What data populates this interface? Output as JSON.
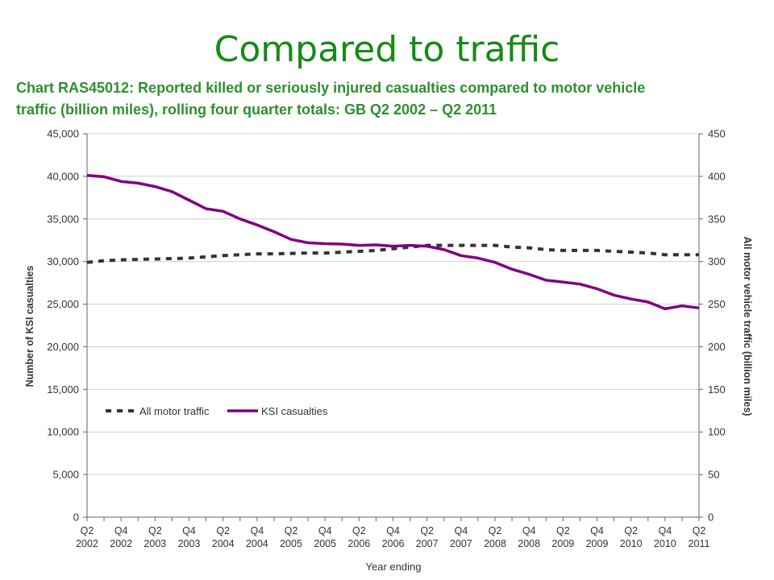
{
  "slide": {
    "title": "Compared to traffic"
  },
  "chart_data": {
    "type": "line",
    "title_lines": [
      "Chart RAS45012: Reported killed or seriously injured casualties compared to motor vehicle",
      "traffic (billion miles), rolling four quarter totals: GB Q2 2002 – Q2 2011"
    ],
    "xlabel": "Year ending",
    "ylabel_left": "Number of KSI casualties",
    "ylabel_right": "All motor vehicle traffic (billion miles)",
    "ylim_left": [
      0,
      45000
    ],
    "ylim_right": [
      0,
      450
    ],
    "yticks_left": [
      "0",
      "5,000",
      "10,000",
      "15,000",
      "20,000",
      "25,000",
      "30,000",
      "35,000",
      "40,000",
      "45,000"
    ],
    "yticks_right": [
      "0",
      "50",
      "100",
      "150",
      "200",
      "250",
      "300",
      "350",
      "400",
      "450"
    ],
    "x": [
      "Q2 2002",
      "Q3 2002",
      "Q4 2002",
      "Q1 2003",
      "Q2 2003",
      "Q3 2003",
      "Q4 2003",
      "Q1 2004",
      "Q2 2004",
      "Q3 2004",
      "Q4 2004",
      "Q1 2005",
      "Q2 2005",
      "Q3 2005",
      "Q4 2005",
      "Q1 2006",
      "Q2 2006",
      "Q3 2006",
      "Q4 2006",
      "Q1 2007",
      "Q2 2007",
      "Q3 2007",
      "Q4 2007",
      "Q1 2008",
      "Q2 2008",
      "Q3 2008",
      "Q4 2008",
      "Q1 2009",
      "Q2 2009",
      "Q3 2009",
      "Q4 2009",
      "Q1 2010",
      "Q2 2010",
      "Q3 2010",
      "Q4 2010",
      "Q1 2011",
      "Q2 2011"
    ],
    "tick_labels": [
      {
        "q": "Q2",
        "y": "2002"
      },
      {
        "q": "Q4",
        "y": "2002"
      },
      {
        "q": "Q2",
        "y": "2003"
      },
      {
        "q": "Q4",
        "y": "2003"
      },
      {
        "q": "Q2",
        "y": "2004"
      },
      {
        "q": "Q4",
        "y": "2004"
      },
      {
        "q": "Q2",
        "y": "2005"
      },
      {
        "q": "Q4",
        "y": "2005"
      },
      {
        "q": "Q2",
        "y": "2006"
      },
      {
        "q": "Q4",
        "y": "2006"
      },
      {
        "q": "Q2",
        "y": "2007"
      },
      {
        "q": "Q4",
        "y": "2007"
      },
      {
        "q": "Q2",
        "y": "2008"
      },
      {
        "q": "Q4",
        "y": "2008"
      },
      {
        "q": "Q2",
        "y": "2009"
      },
      {
        "q": "Q4",
        "y": "2009"
      },
      {
        "q": "Q2",
        "y": "2010"
      },
      {
        "q": "Q4",
        "y": "2010"
      },
      {
        "q": "Q2",
        "y": "2011"
      }
    ],
    "series": [
      {
        "name": "All motor traffic",
        "axis": "right",
        "style": "dashed",
        "color": "#333333",
        "values": [
          299,
          301,
          302,
          302.5,
          303,
          303.5,
          304,
          305.5,
          307,
          308,
          309,
          309,
          309.5,
          310,
          310,
          311,
          312,
          313,
          315,
          317,
          319,
          319,
          319,
          319,
          319,
          317,
          316,
          314,
          313,
          313,
          313,
          312,
          311,
          310,
          308,
          308,
          308
        ]
      },
      {
        "name": "KSI casualties",
        "axis": "left",
        "style": "solid",
        "color": "#800080",
        "values": [
          40100,
          39950,
          39400,
          39200,
          38800,
          38200,
          37200,
          36200,
          35900,
          35000,
          34300,
          33500,
          32600,
          32200,
          32100,
          32050,
          31900,
          31950,
          31800,
          31900,
          31800,
          31400,
          30700,
          30400,
          29900,
          29100,
          28500,
          27800,
          27600,
          27350,
          26800,
          26050,
          25600,
          25250,
          24450,
          24800,
          24550
        ]
      }
    ],
    "legend": "inside-left-lower",
    "grid": "horizontal"
  }
}
